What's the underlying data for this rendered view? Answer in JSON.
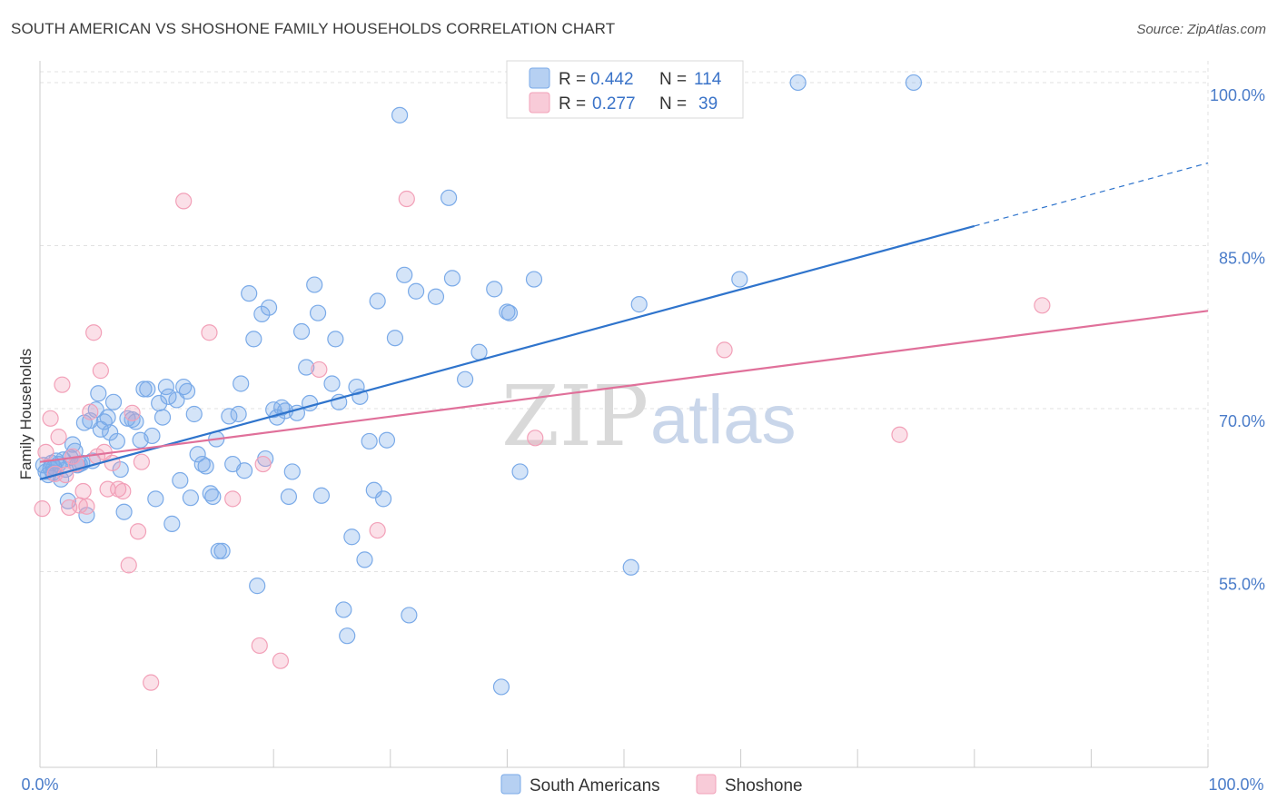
{
  "header": {
    "title": "SOUTH AMERICAN VS SHOSHONE FAMILY HOUSEHOLDS CORRELATION CHART",
    "source": "Source: ZipAtlas.com"
  },
  "watermark": {
    "zip": "ZIP",
    "atlas": "atlas"
  },
  "legend": {
    "r_label": "R =",
    "n_label": "N =",
    "rows": [
      {
        "r": "0.442",
        "n": "114",
        "color": "#7aaae8"
      },
      {
        "r": "0.277",
        "n": "39",
        "color": "#f2a0b8"
      }
    ]
  },
  "bottom_legend": [
    {
      "label": "South Americans",
      "color": "#7aaae8"
    },
    {
      "label": "Shoshone",
      "color": "#f2a0b8"
    }
  ],
  "chart_data": {
    "type": "scatter",
    "title": "SOUTH AMERICAN VS SHOSHONE FAMILY HOUSEHOLDS CORRELATION CHART",
    "xlabel": "",
    "ylabel": "Family Households",
    "xlim": [
      0,
      100
    ],
    "ylim": [
      37,
      102
    ],
    "x_tick_labels": [
      "0.0%",
      "100.0%"
    ],
    "y_ticks": [
      {
        "value": 55,
        "label": "55.0%"
      },
      {
        "value": 70,
        "label": "70.0%"
      },
      {
        "value": 85,
        "label": "85.0%"
      },
      {
        "value": 100,
        "label": "100.0%"
      }
    ],
    "grid": true,
    "legend_position": "top-center",
    "series": [
      {
        "name": "South Americans",
        "color": "#7aaae8",
        "line_color": "#2f74cc",
        "trend": {
          "x0": 0,
          "y0": 63.5,
          "x1": 80,
          "y1": 86.8,
          "dashed_to_x": 100,
          "dashed_to_y": 92.6
        },
        "points": [
          [
            0.3,
            64.8
          ],
          [
            0.5,
            64.2
          ],
          [
            0.7,
            63.9
          ],
          [
            0.9,
            64.5
          ],
          [
            1.0,
            65.0
          ],
          [
            1.1,
            64.1
          ],
          [
            1.2,
            64.6
          ],
          [
            1.4,
            65.2
          ],
          [
            1.6,
            64.9
          ],
          [
            1.8,
            63.5
          ],
          [
            2.0,
            65.3
          ],
          [
            2.2,
            64.4
          ],
          [
            2.4,
            61.5
          ],
          [
            2.6,
            65.5
          ],
          [
            2.8,
            66.7
          ],
          [
            3.0,
            66.1
          ],
          [
            3.2,
            64.8
          ],
          [
            3.4,
            64.9
          ],
          [
            3.6,
            65.0
          ],
          [
            3.8,
            68.7
          ],
          [
            4.0,
            60.2
          ],
          [
            4.3,
            68.9
          ],
          [
            4.5,
            65.2
          ],
          [
            4.8,
            69.9
          ],
          [
            5.0,
            71.4
          ],
          [
            5.2,
            68.1
          ],
          [
            5.5,
            68.8
          ],
          [
            5.8,
            69.2
          ],
          [
            6.0,
            67.8
          ],
          [
            6.3,
            70.6
          ],
          [
            6.6,
            67.0
          ],
          [
            6.9,
            64.4
          ],
          [
            7.2,
            60.5
          ],
          [
            7.5,
            69.1
          ],
          [
            7.9,
            69.0
          ],
          [
            8.2,
            68.8
          ],
          [
            8.6,
            67.1
          ],
          [
            8.9,
            71.8
          ],
          [
            9.2,
            71.8
          ],
          [
            9.6,
            67.5
          ],
          [
            9.9,
            61.7
          ],
          [
            10.2,
            70.5
          ],
          [
            10.5,
            69.2
          ],
          [
            10.8,
            72.0
          ],
          [
            11.0,
            71.1
          ],
          [
            11.3,
            59.4
          ],
          [
            11.7,
            70.8
          ],
          [
            12.0,
            63.4
          ],
          [
            12.3,
            72.0
          ],
          [
            12.6,
            71.6
          ],
          [
            12.9,
            61.8
          ],
          [
            13.2,
            69.5
          ],
          [
            13.5,
            65.8
          ],
          [
            13.9,
            64.9
          ],
          [
            14.2,
            64.7
          ],
          [
            14.6,
            62.2
          ],
          [
            14.8,
            61.9
          ],
          [
            15.1,
            67.2
          ],
          [
            15.3,
            56.9
          ],
          [
            15.6,
            56.9
          ],
          [
            16.2,
            69.3
          ],
          [
            16.5,
            64.9
          ],
          [
            17.0,
            69.5
          ],
          [
            17.2,
            72.3
          ],
          [
            17.5,
            64.3
          ],
          [
            17.9,
            80.6
          ],
          [
            18.3,
            76.4
          ],
          [
            18.6,
            53.7
          ],
          [
            19.0,
            78.7
          ],
          [
            19.3,
            65.4
          ],
          [
            19.6,
            79.3
          ],
          [
            20.0,
            69.9
          ],
          [
            20.3,
            69.2
          ],
          [
            20.7,
            70.1
          ],
          [
            21.0,
            69.8
          ],
          [
            21.3,
            61.9
          ],
          [
            21.6,
            64.2
          ],
          [
            22.0,
            69.6
          ],
          [
            22.4,
            77.1
          ],
          [
            22.8,
            73.8
          ],
          [
            23.1,
            70.5
          ],
          [
            23.5,
            81.4
          ],
          [
            23.8,
            78.8
          ],
          [
            24.1,
            62.0
          ],
          [
            25.0,
            72.3
          ],
          [
            25.3,
            76.4
          ],
          [
            25.6,
            70.6
          ],
          [
            26.0,
            51.5
          ],
          [
            26.3,
            49.1
          ],
          [
            26.7,
            58.2
          ],
          [
            27.1,
            72.0
          ],
          [
            27.4,
            71.1
          ],
          [
            27.8,
            56.1
          ],
          [
            28.2,
            67.0
          ],
          [
            28.6,
            62.5
          ],
          [
            28.9,
            79.9
          ],
          [
            29.4,
            61.7
          ],
          [
            29.7,
            67.1
          ],
          [
            30.4,
            76.5
          ],
          [
            30.8,
            97.0
          ],
          [
            31.2,
            82.3
          ],
          [
            31.6,
            51.0
          ],
          [
            32.2,
            80.8
          ],
          [
            33.9,
            80.3
          ],
          [
            35.0,
            89.4
          ],
          [
            35.3,
            82.0
          ],
          [
            36.4,
            72.7
          ],
          [
            37.6,
            75.2
          ],
          [
            38.9,
            81.0
          ],
          [
            39.5,
            44.4
          ],
          [
            40.0,
            78.9
          ],
          [
            40.2,
            78.8
          ],
          [
            41.1,
            64.2
          ],
          [
            42.3,
            81.9
          ],
          [
            50.6,
            55.4
          ],
          [
            51.3,
            79.6
          ],
          [
            59.9,
            81.9
          ],
          [
            64.9,
            100.0
          ],
          [
            74.8,
            100.0
          ]
        ]
      },
      {
        "name": "Shoshone",
        "color": "#f2a0b8",
        "line_color": "#e0709a",
        "trend": {
          "x0": 0,
          "y0": 65.1,
          "x1": 100,
          "y1": 79.0
        },
        "points": [
          [
            0.2,
            60.8
          ],
          [
            0.5,
            66.0
          ],
          [
            0.9,
            69.1
          ],
          [
            1.3,
            64.0
          ],
          [
            1.6,
            67.4
          ],
          [
            1.9,
            72.2
          ],
          [
            2.2,
            63.9
          ],
          [
            2.5,
            60.9
          ],
          [
            2.8,
            65.6
          ],
          [
            3.1,
            64.9
          ],
          [
            3.4,
            61.1
          ],
          [
            3.7,
            62.4
          ],
          [
            4.0,
            61.0
          ],
          [
            4.3,
            69.7
          ],
          [
            4.6,
            77.0
          ],
          [
            4.9,
            65.6
          ],
          [
            5.2,
            73.5
          ],
          [
            5.5,
            66.0
          ],
          [
            5.8,
            62.6
          ],
          [
            6.2,
            65.0
          ],
          [
            6.7,
            62.6
          ],
          [
            7.1,
            62.4
          ],
          [
            7.6,
            55.6
          ],
          [
            7.9,
            69.6
          ],
          [
            8.4,
            58.7
          ],
          [
            8.7,
            65.1
          ],
          [
            9.5,
            44.8
          ],
          [
            12.3,
            89.1
          ],
          [
            14.5,
            77.0
          ],
          [
            16.5,
            61.7
          ],
          [
            18.8,
            48.2
          ],
          [
            19.1,
            64.9
          ],
          [
            20.6,
            46.8
          ],
          [
            23.9,
            73.6
          ],
          [
            28.9,
            58.8
          ],
          [
            31.4,
            89.3
          ],
          [
            42.4,
            67.3
          ],
          [
            58.6,
            75.4
          ],
          [
            73.6,
            67.6
          ],
          [
            85.8,
            79.5
          ]
        ]
      }
    ]
  }
}
